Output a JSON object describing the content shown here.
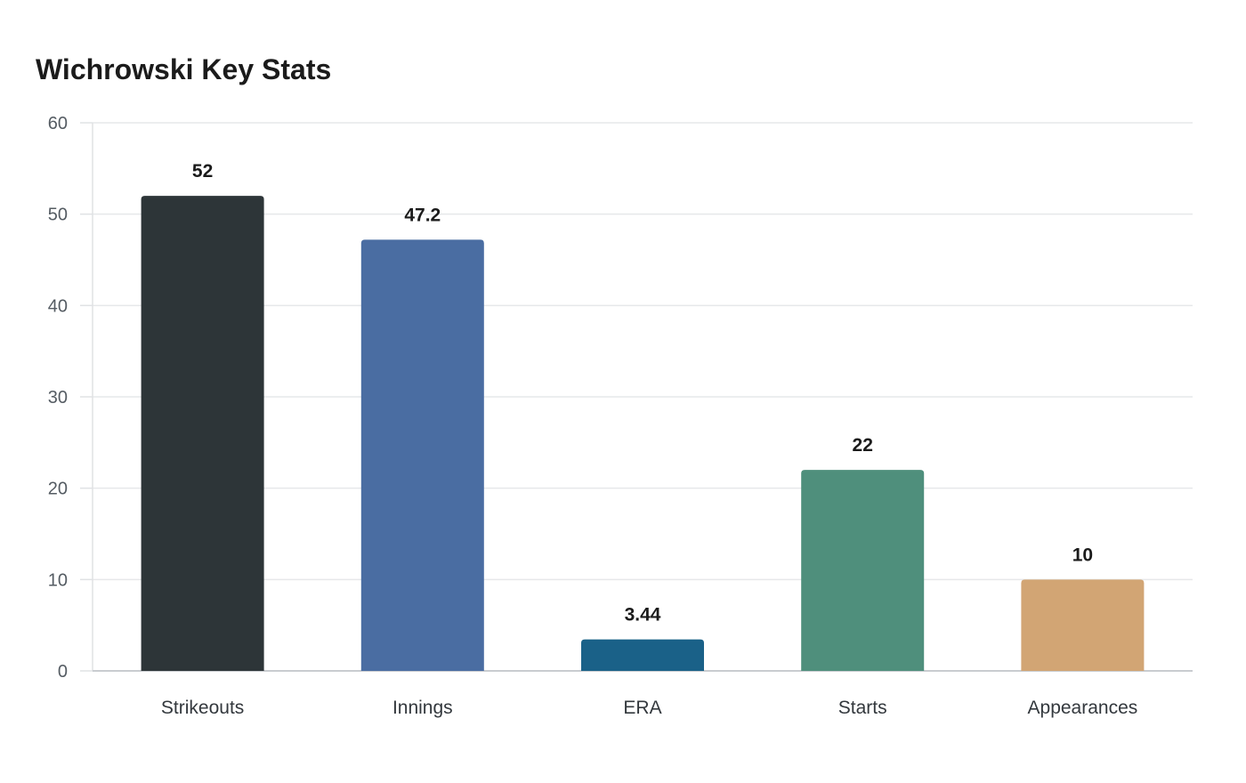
{
  "chart_data": {
    "type": "bar",
    "title": "Wichrowski Key Stats",
    "xlabel": "",
    "ylabel": "",
    "categories": [
      "Strikeouts",
      "Innings",
      "ERA",
      "Starts",
      "Appearances"
    ],
    "values": [
      52,
      47.2,
      3.44,
      22,
      10
    ],
    "value_labels": [
      "52",
      "47.2",
      "3.44",
      "22",
      "10"
    ],
    "colors": [
      "#2d3538",
      "#4a6da2",
      "#1a6188",
      "#4f8f7c",
      "#d2a574"
    ],
    "ylim": [
      0,
      60
    ],
    "yticks": [
      0,
      10,
      20,
      30,
      40,
      50,
      60
    ],
    "grid": true,
    "legend": "none"
  }
}
